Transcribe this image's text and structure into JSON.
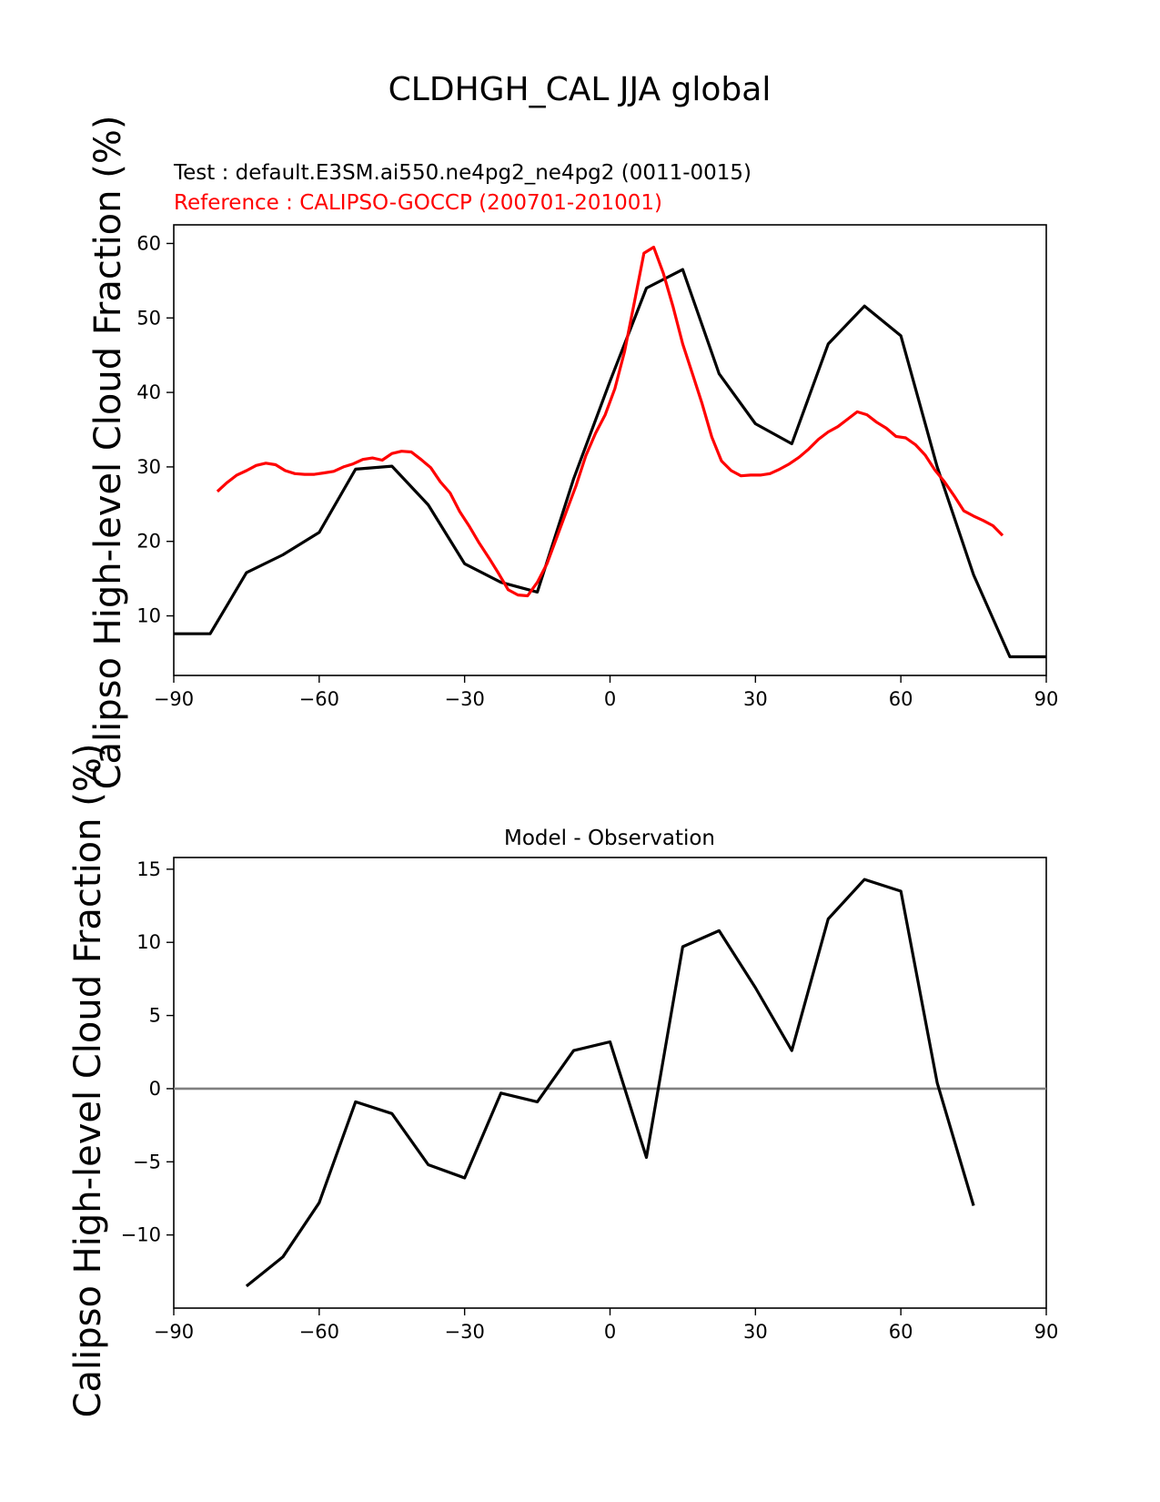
{
  "figure": {
    "suptitle": "CLDHGH_CAL JJA global"
  },
  "chart_data": [
    {
      "type": "line",
      "test_label": "Test : default.E3SM.ai550.ne4pg2_ne4pg2 (0011-0015)",
      "reference_label": "Reference : CALIPSO-GOCCP (200701-201001)",
      "ylabel": "Calipso High-level Cloud Fraction (%)",
      "xlim": [
        -90,
        90
      ],
      "ylim": [
        2,
        62.5
      ],
      "xticks": [
        -90,
        -60,
        -30,
        0,
        30,
        60,
        90
      ],
      "xtick_labels": [
        "−90",
        "−60",
        "−30",
        "0",
        "30",
        "60",
        "90"
      ],
      "yticks": [
        10,
        20,
        30,
        40,
        50,
        60
      ],
      "ytick_labels": [
        "10",
        "20",
        "30",
        "40",
        "50",
        "60"
      ],
      "series": [
        {
          "color": "#000000",
          "points": [
            [
              -90,
              7.6
            ],
            [
              -82.5,
              7.6
            ],
            [
              -75,
              15.8
            ],
            [
              -67.5,
              18.2
            ],
            [
              -60,
              21.2
            ],
            [
              -52.5,
              29.7
            ],
            [
              -45,
              30.1
            ],
            [
              -37.5,
              24.9
            ],
            [
              -30,
              17.0
            ],
            [
              -22.5,
              14.5
            ],
            [
              -15,
              13.2
            ],
            [
              -7.5,
              28.4
            ],
            [
              0,
              41.5
            ],
            [
              7.5,
              54.0
            ],
            [
              15,
              56.5
            ],
            [
              22.5,
              42.5
            ],
            [
              30,
              35.8
            ],
            [
              37.5,
              33.1
            ],
            [
              45,
              46.5
            ],
            [
              52.5,
              51.6
            ],
            [
              60,
              47.6
            ],
            [
              67.5,
              30.0
            ],
            [
              75,
              15.5
            ],
            [
              82.5,
              4.5
            ],
            [
              90,
              4.5
            ]
          ]
        },
        {
          "color": "#ff0000",
          "points": [
            [
              -81,
              26.7
            ],
            [
              -79,
              27.9
            ],
            [
              -77,
              28.9
            ],
            [
              -75,
              29.5
            ],
            [
              -73,
              30.2
            ],
            [
              -71,
              30.5
            ],
            [
              -69,
              30.3
            ],
            [
              -67,
              29.5
            ],
            [
              -65,
              29.1
            ],
            [
              -63,
              29.0
            ],
            [
              -61,
              29.0
            ],
            [
              -59,
              29.2
            ],
            [
              -57,
              29.4
            ],
            [
              -55,
              30.0
            ],
            [
              -53,
              30.4
            ],
            [
              -51,
              31.0
            ],
            [
              -49,
              31.2
            ],
            [
              -47,
              30.9
            ],
            [
              -45,
              31.8
            ],
            [
              -43,
              32.1
            ],
            [
              -41,
              32.0
            ],
            [
              -39,
              31.0
            ],
            [
              -37,
              29.9
            ],
            [
              -35,
              28.0
            ],
            [
              -33,
              26.5
            ],
            [
              -31,
              24.0
            ],
            [
              -29,
              22.0
            ],
            [
              -27,
              19.8
            ],
            [
              -25,
              17.8
            ],
            [
              -23,
              15.7
            ],
            [
              -21,
              13.5
            ],
            [
              -19,
              12.8
            ],
            [
              -17,
              12.7
            ],
            [
              -15,
              14.5
            ],
            [
              -13,
              17.0
            ],
            [
              -11,
              20.5
            ],
            [
              -9,
              24.0
            ],
            [
              -7,
              27.5
            ],
            [
              -5,
              31.5
            ],
            [
              -3,
              34.5
            ],
            [
              -1,
              37.0
            ],
            [
              1,
              40.5
            ],
            [
              3,
              45.5
            ],
            [
              5,
              52.0
            ],
            [
              7,
              58.7
            ],
            [
              9,
              59.5
            ],
            [
              11,
              56.0
            ],
            [
              13,
              51.5
            ],
            [
              15,
              46.5
            ],
            [
              17,
              42.5
            ],
            [
              19,
              38.5
            ],
            [
              21,
              34.0
            ],
            [
              23,
              30.8
            ],
            [
              25,
              29.5
            ],
            [
              27,
              28.8
            ],
            [
              29,
              28.9
            ],
            [
              31,
              28.9
            ],
            [
              33,
              29.1
            ],
            [
              35,
              29.7
            ],
            [
              37,
              30.4
            ],
            [
              39,
              31.3
            ],
            [
              41,
              32.4
            ],
            [
              43,
              33.7
            ],
            [
              45,
              34.7
            ],
            [
              47,
              35.4
            ],
            [
              49,
              36.4
            ],
            [
              51,
              37.4
            ],
            [
              53,
              37.0
            ],
            [
              55,
              36.0
            ],
            [
              57,
              35.2
            ],
            [
              59,
              34.1
            ],
            [
              61,
              33.9
            ],
            [
              63,
              33.0
            ],
            [
              65,
              31.6
            ],
            [
              67,
              29.6
            ],
            [
              69,
              28.0
            ],
            [
              71,
              26.1
            ],
            [
              73,
              24.1
            ],
            [
              75,
              23.4
            ],
            [
              77,
              22.8
            ],
            [
              79,
              22.1
            ],
            [
              81,
              20.8
            ]
          ]
        }
      ]
    },
    {
      "type": "line",
      "title": "Model - Observation",
      "ylabel": "Calipso High-level Cloud Fraction (%)",
      "xlim": [
        -90,
        90
      ],
      "ylim": [
        -15,
        15.8
      ],
      "xticks": [
        -90,
        -60,
        -30,
        0,
        30,
        60,
        90
      ],
      "xtick_labels": [
        "−90",
        "−60",
        "−30",
        "0",
        "30",
        "60",
        "90"
      ],
      "yticks": [
        -10,
        -5,
        0,
        5,
        10,
        15
      ],
      "ytick_labels": [
        "−10",
        "−5",
        "0",
        "5",
        "10",
        "15"
      ],
      "zero_line_color": "#808080",
      "series": [
        {
          "color": "#000000",
          "points": [
            [
              -75,
              -13.5
            ],
            [
              -67.5,
              -11.5
            ],
            [
              -60,
              -7.8
            ],
            [
              -52.5,
              -0.9
            ],
            [
              -45,
              -1.7
            ],
            [
              -37.5,
              -5.2
            ],
            [
              -30,
              -6.1
            ],
            [
              -22.5,
              -0.3
            ],
            [
              -15,
              -0.9
            ],
            [
              -7.5,
              2.6
            ],
            [
              0,
              3.2
            ],
            [
              7.5,
              -4.7
            ],
            [
              15,
              9.7
            ],
            [
              22.5,
              10.8
            ],
            [
              30,
              6.9
            ],
            [
              37.5,
              2.6
            ],
            [
              45,
              11.6
            ],
            [
              52.5,
              14.3
            ],
            [
              60,
              13.5
            ],
            [
              67.5,
              0.4
            ],
            [
              75,
              -8.0
            ]
          ]
        }
      ]
    }
  ]
}
